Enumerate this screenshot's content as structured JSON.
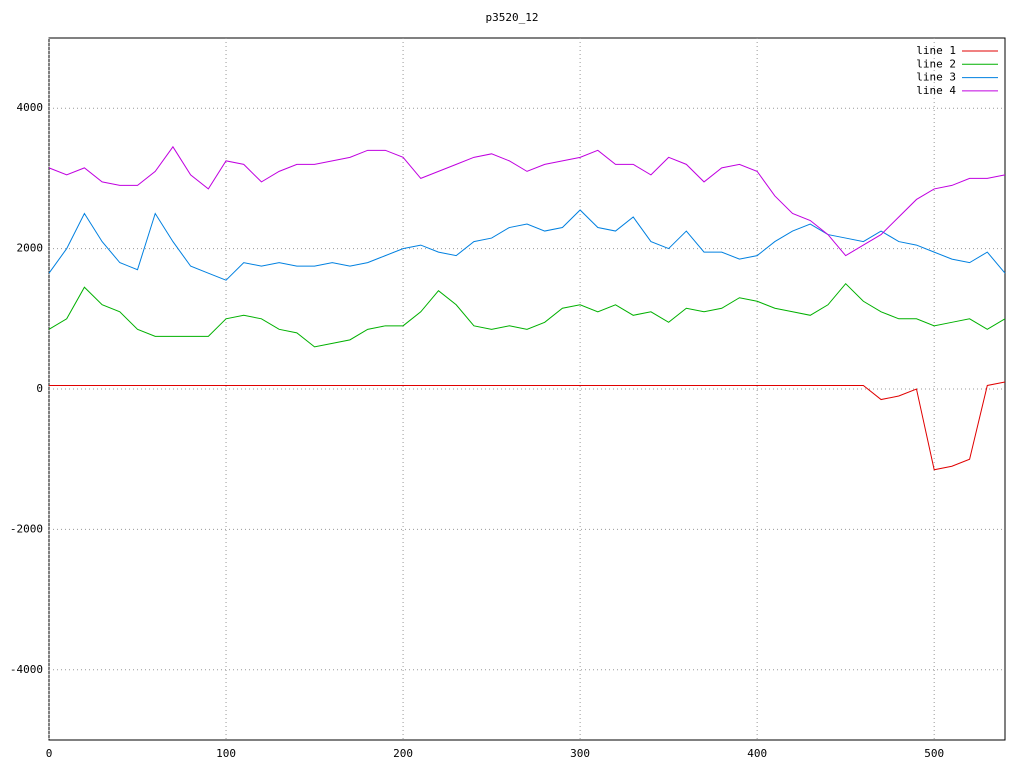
{
  "chart_data": {
    "type": "line",
    "title": "p3520_12",
    "x": [
      0,
      10,
      20,
      30,
      40,
      50,
      60,
      70,
      80,
      90,
      100,
      110,
      120,
      130,
      140,
      150,
      160,
      170,
      180,
      190,
      200,
      210,
      220,
      230,
      240,
      250,
      260,
      270,
      280,
      290,
      300,
      310,
      320,
      330,
      340,
      350,
      360,
      370,
      380,
      390,
      400,
      410,
      420,
      430,
      440,
      450,
      460,
      470,
      480,
      490,
      500,
      510,
      520,
      530,
      540
    ],
    "series": [
      {
        "name": "line 1",
        "color": "#e00000",
        "values": [
          50,
          50,
          50,
          50,
          50,
          50,
          50,
          50,
          50,
          50,
          50,
          50,
          50,
          50,
          50,
          50,
          50,
          50,
          50,
          50,
          50,
          50,
          50,
          50,
          50,
          50,
          50,
          50,
          50,
          50,
          50,
          50,
          50,
          50,
          50,
          50,
          50,
          50,
          50,
          50,
          50,
          50,
          50,
          50,
          50,
          50,
          50,
          -150,
          -100,
          0,
          -1150,
          -1100,
          -1000,
          50,
          100
        ]
      },
      {
        "name": "line 2",
        "color": "#00b000",
        "values": [
          850,
          1000,
          1450,
          1200,
          1100,
          850,
          750,
          750,
          750,
          750,
          1000,
          1050,
          1000,
          850,
          800,
          600,
          650,
          700,
          850,
          900,
          900,
          1100,
          1400,
          1200,
          900,
          850,
          900,
          850,
          950,
          1150,
          1200,
          1100,
          1200,
          1050,
          1100,
          950,
          1150,
          1100,
          1150,
          1300,
          1250,
          1150,
          1100,
          1050,
          1200,
          1500,
          1250,
          1100,
          1000,
          1000,
          900,
          950,
          1000,
          850,
          1000
        ]
      },
      {
        "name": "line 3",
        "color": "#0080e0",
        "values": [
          1650,
          2000,
          2500,
          2100,
          1800,
          1700,
          2500,
          2100,
          1750,
          1650,
          1550,
          1800,
          1750,
          1800,
          1750,
          1750,
          1800,
          1750,
          1800,
          1900,
          2000,
          2050,
          1950,
          1900,
          2100,
          2150,
          2300,
          2350,
          2250,
          2300,
          2550,
          2300,
          2250,
          2450,
          2100,
          2000,
          2250,
          1950,
          1950,
          1850,
          1900,
          2100,
          2250,
          2350,
          2200,
          2150,
          2100,
          2250,
          2100,
          2050,
          1950,
          1850,
          1800,
          1950,
          1650
        ]
      },
      {
        "name": "line 4",
        "color": "#c000e0",
        "values": [
          3150,
          3050,
          3150,
          2950,
          2900,
          2900,
          3100,
          3450,
          3050,
          2850,
          3250,
          3200,
          2950,
          3100,
          3200,
          3200,
          3250,
          3300,
          3400,
          3400,
          3300,
          3000,
          3100,
          3200,
          3300,
          3350,
          3250,
          3100,
          3200,
          3250,
          3300,
          3400,
          3200,
          3200,
          3050,
          3300,
          3200,
          2950,
          3150,
          3200,
          3100,
          2750,
          2500,
          2400,
          2200,
          1900,
          2050,
          2200,
          2450,
          2700,
          2850,
          2900,
          3000,
          3000,
          3050
        ]
      }
    ],
    "xlim": [
      0,
      540
    ],
    "ylim": [
      -5000,
      5000
    ],
    "xticks": [
      0,
      100,
      200,
      300,
      400,
      500
    ],
    "yticks": [
      -4000,
      -2000,
      0,
      2000,
      4000
    ],
    "grid": true,
    "legend": "top-right"
  }
}
